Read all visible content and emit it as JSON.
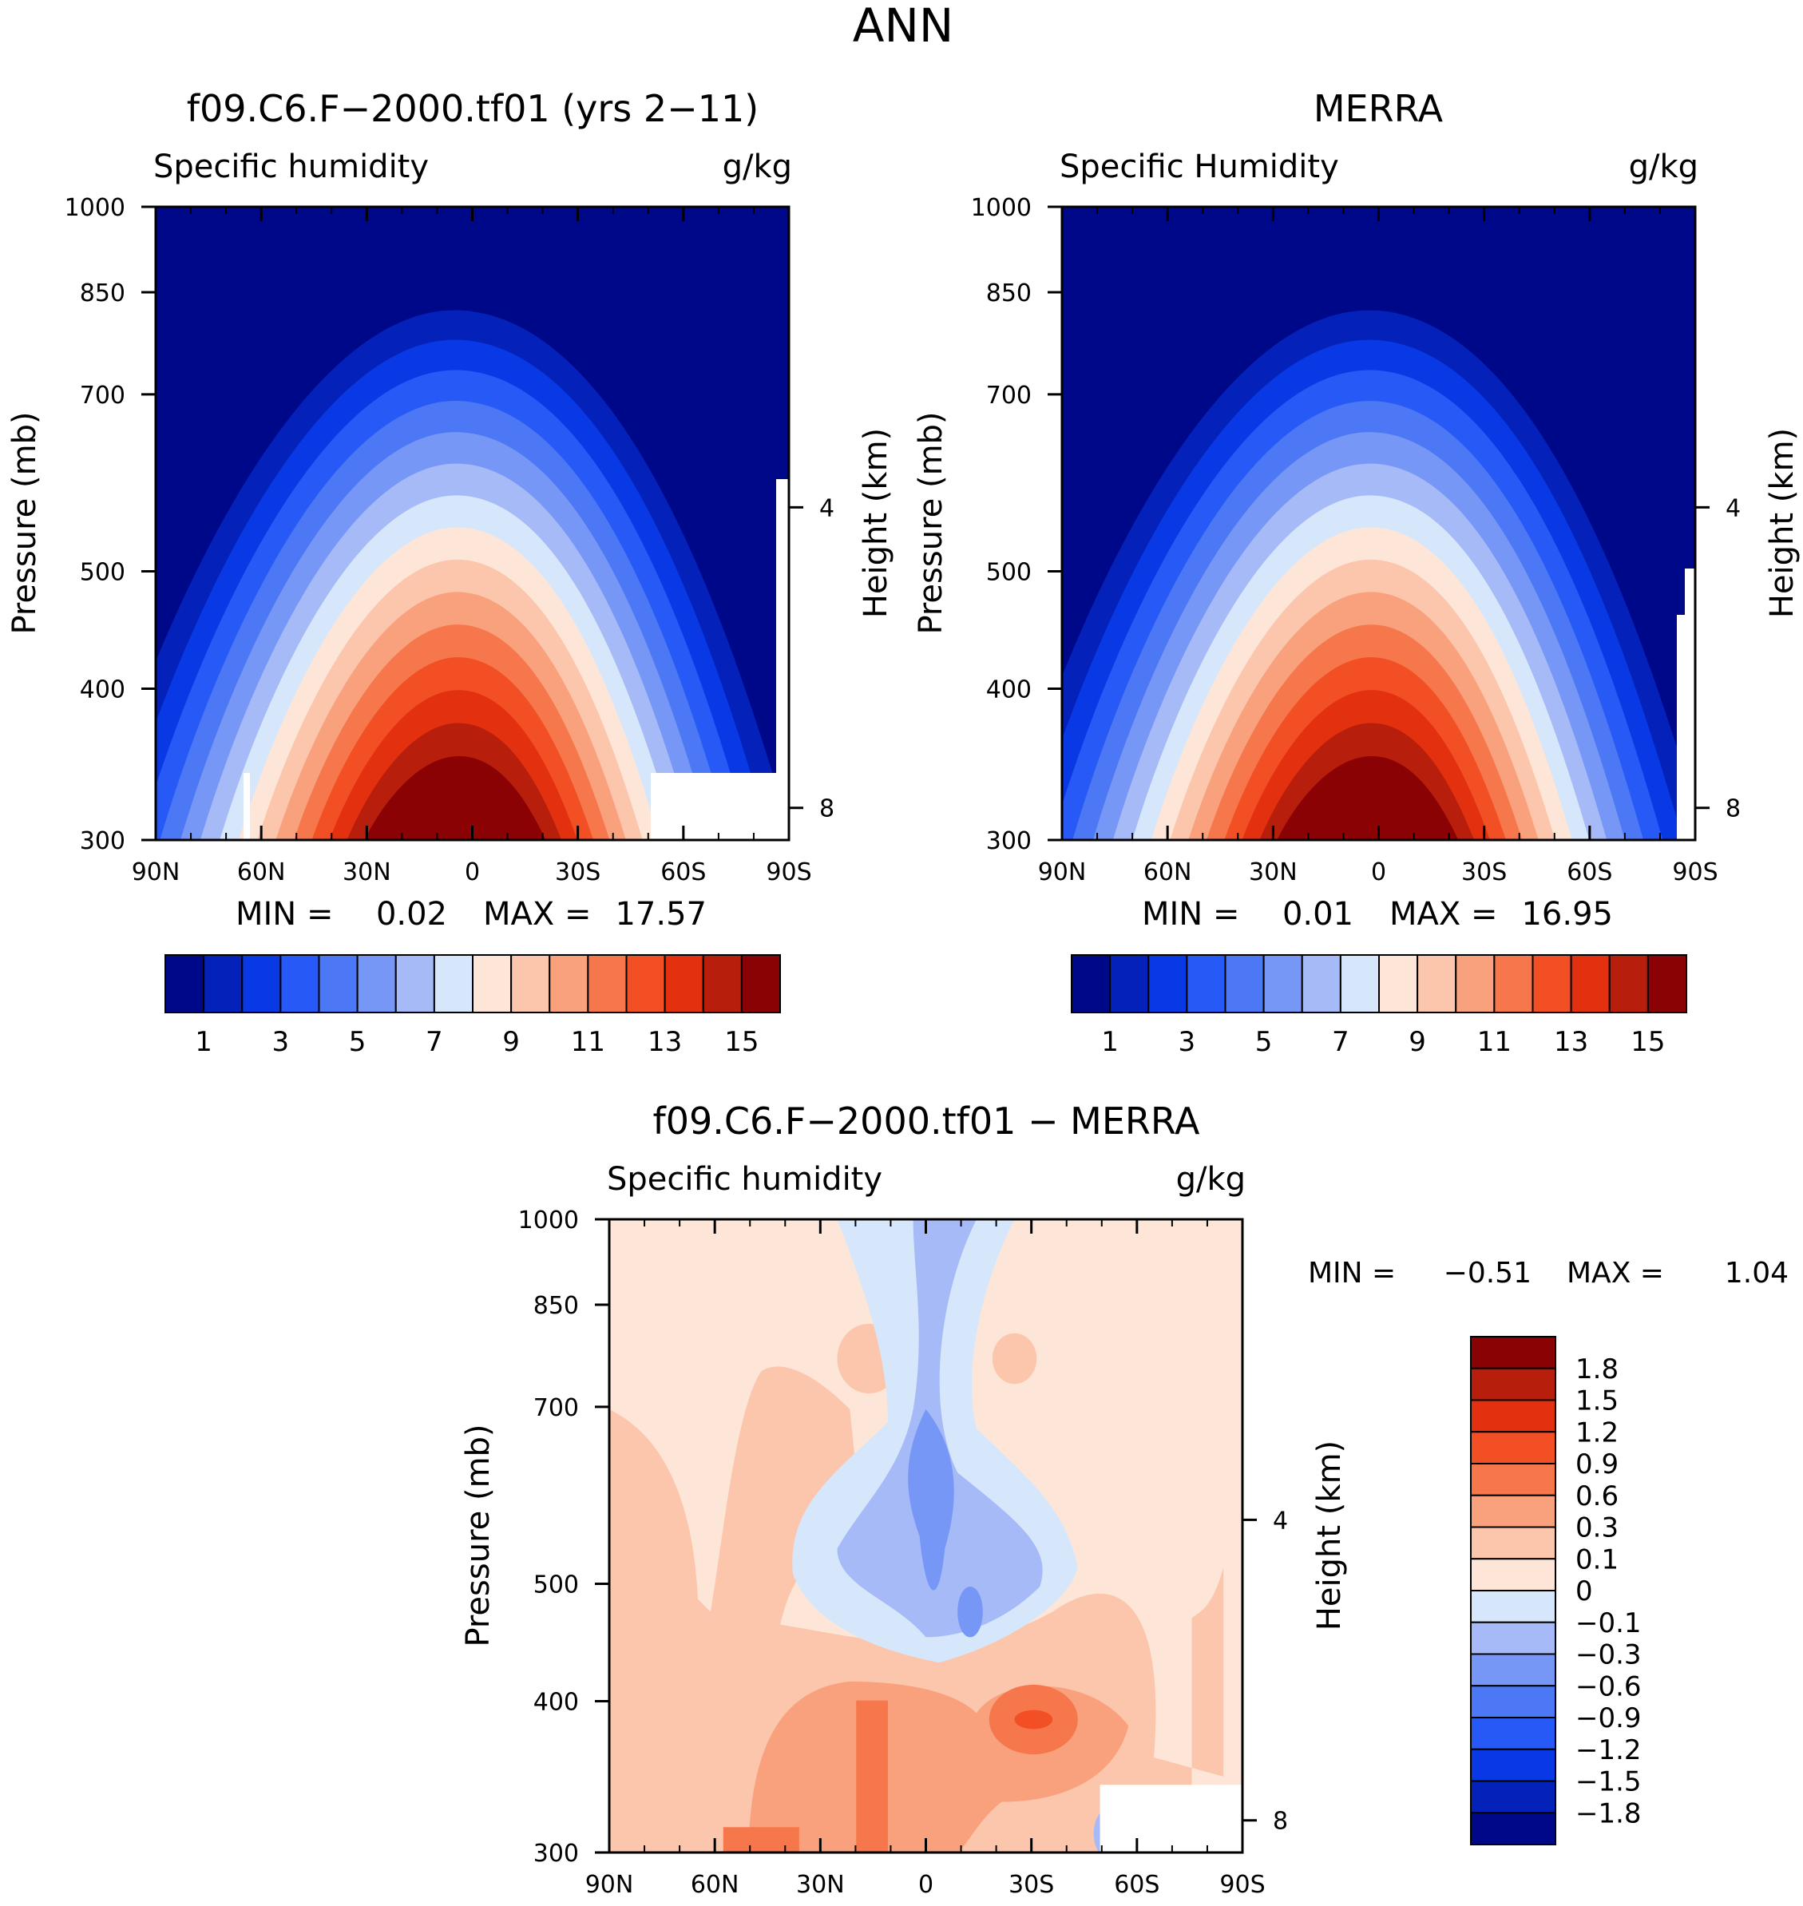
{
  "page_title": "ANN",
  "colors": {
    "seq": [
      "#00088a",
      "#0421ba",
      "#0839e4",
      "#2659f6",
      "#4c78f6",
      "#7797f7",
      "#a6baf8",
      "#d7e7fb",
      "#fde6d8",
      "#fbc6ac",
      "#f9a17d",
      "#f6774b",
      "#f24f25",
      "#e3300f",
      "#b71e0c",
      "#8a0203"
    ],
    "diff": [
      "#00088a",
      "#0421ba",
      "#0839e4",
      "#2659f6",
      "#4c78f6",
      "#7797f7",
      "#a6baf8",
      "#d7e7fb",
      "#fde6d8",
      "#fbc6ac",
      "#f9a17d",
      "#f6774b",
      "#f24f25",
      "#e3300f",
      "#b71e0c",
      "#8a0203"
    ]
  },
  "panels": {
    "model": {
      "title": "f09.C6.F−2000.tf01 (yrs 2−11)",
      "variable": "Specific humidity",
      "units": "g/kg",
      "min_label": "MIN =",
      "min_value": "0.02",
      "max_label": "MAX =",
      "max_value": "17.57"
    },
    "obs": {
      "title": "MERRA",
      "variable": "Specific Humidity",
      "units": "g/kg",
      "min_label": "MIN =",
      "min_value": "0.01",
      "max_label": "MAX =",
      "max_value": "16.95"
    },
    "diff": {
      "title": "f09.C6.F−2000.tf01 − MERRA",
      "variable": "Specific humidity",
      "units": "g/kg",
      "min_label": "MIN =",
      "min_value": "−0.51",
      "max_label": "MAX =",
      "max_value": "1.04"
    }
  },
  "chart_data": [
    {
      "type": "contour",
      "panel": "model",
      "title": "f09.C6.F−2000.tf01 (yrs 2−11)",
      "ylabel": "Pressure (mb)",
      "y2label": "Height (km)",
      "x_ticks": [
        "90N",
        "60N",
        "30N",
        "0",
        "30S",
        "60S",
        "90S"
      ],
      "y_ticks": [
        "300",
        "400",
        "500",
        "700",
        "850",
        "1000"
      ],
      "y2_ticks": [
        "8",
        "4"
      ],
      "contour_levels": [
        1,
        2,
        3,
        4,
        5,
        6,
        7,
        8,
        9,
        10,
        11,
        12,
        13,
        14,
        15
      ],
      "colorbar_labels": [
        "1",
        "3",
        "5",
        "7",
        "9",
        "11",
        "13",
        "15"
      ],
      "min": 0.02,
      "max": 17.57
    },
    {
      "type": "contour",
      "panel": "obs",
      "title": "MERRA",
      "ylabel": "Pressure (mb)",
      "y2label": "Height (km)",
      "x_ticks": [
        "90N",
        "60N",
        "30N",
        "0",
        "30S",
        "60S",
        "90S"
      ],
      "y_ticks": [
        "300",
        "400",
        "500",
        "700",
        "850",
        "1000"
      ],
      "y2_ticks": [
        "8",
        "4"
      ],
      "contour_levels": [
        1,
        2,
        3,
        4,
        5,
        6,
        7,
        8,
        9,
        10,
        11,
        12,
        13,
        14,
        15
      ],
      "colorbar_labels": [
        "1",
        "3",
        "5",
        "7",
        "9",
        "11",
        "13",
        "15"
      ],
      "min": 0.01,
      "max": 16.95
    },
    {
      "type": "contour",
      "panel": "diff",
      "title": "f09.C6.F−2000.tf01 − MERRA",
      "ylabel": "Pressure (mb)",
      "y2label": "Height (km)",
      "x_ticks": [
        "90N",
        "60N",
        "30N",
        "0",
        "30S",
        "60S",
        "90S"
      ],
      "y_ticks": [
        "300",
        "400",
        "500",
        "700",
        "850",
        "1000"
      ],
      "y2_ticks": [
        "8",
        "4"
      ],
      "contour_levels": [
        -1.8,
        -1.5,
        -1.2,
        -0.9,
        -0.6,
        -0.3,
        -0.1,
        0,
        0.1,
        0.3,
        0.6,
        0.9,
        1.2,
        1.5,
        1.8
      ],
      "colorbar_labels": [
        "1.8",
        "1.5",
        "1.2",
        "0.9",
        "0.6",
        "0.3",
        "0.1",
        "0",
        "−0.1",
        "−0.3",
        "−0.6",
        "−0.9",
        "−1.2",
        "−1.5",
        "−1.8"
      ],
      "min": -0.51,
      "max": 1.04
    }
  ]
}
